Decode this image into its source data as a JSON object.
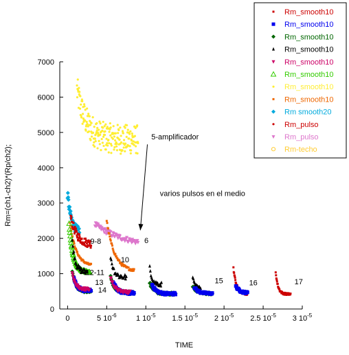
{
  "chart_data": {
    "type": "scatter",
    "xlabel": "TIME",
    "ylabel": "Rm=(ch1-ch2)*(Rp/ch2);",
    "xlim": [
      -1e-06,
      3e-05
    ],
    "ylim": [
      0,
      7000
    ],
    "x_ticks": [
      0,
      5e-06,
      1e-05,
      1.5e-05,
      2e-05,
      2.5e-05,
      3e-05
    ],
    "x_tick_labels": [
      {
        "base": "0",
        "exp": ""
      },
      {
        "base": "5 10",
        "exp": "-6"
      },
      {
        "base": "1 10",
        "exp": "-5"
      },
      {
        "base": "1.5 10",
        "exp": "-5"
      },
      {
        "base": "2 10",
        "exp": "-5"
      },
      {
        "base": "2.5 10",
        "exp": "-5"
      },
      {
        "base": "3 10",
        "exp": "-5"
      }
    ],
    "y_ticks": [
      0,
      1000,
      2000,
      3000,
      4000,
      5000,
      6000,
      7000
    ],
    "y_tick_labels": [
      "0",
      "1000",
      "2000",
      "3000",
      "4000",
      "5000",
      "6000",
      "7000"
    ],
    "legend_position": "top-right, outside plot",
    "series": [
      {
        "name": "Rm_smooth10",
        "color": "#cc0000",
        "marker": "square-small"
      },
      {
        "name": "Rm_smooth10",
        "color": "#0000ee",
        "marker": "square"
      },
      {
        "name": "Rm_smooth10",
        "color": "#006600",
        "marker": "diamond"
      },
      {
        "name": "Rm_smooth10",
        "color": "#000000",
        "marker": "triangle-up"
      },
      {
        "name": "Rm_smooth10",
        "color": "#cc0066",
        "marker": "triangle-down"
      },
      {
        "name": "Rm_smooth10",
        "color": "#33cc00",
        "marker": "triangle-open"
      },
      {
        "name": "Rm_smooth10",
        "color": "#ffee33",
        "marker": "circle-small"
      },
      {
        "name": "Rm_smooth10",
        "color": "#ee6600",
        "marker": "square-small"
      },
      {
        "name": "Rm smooth20",
        "color": "#00aadd",
        "marker": "diamond"
      },
      {
        "name": "Rm_pulso",
        "color": "#cc0000",
        "marker": "circle-small"
      },
      {
        "name": "Rm_pulso",
        "color": "#dd77cc",
        "marker": "triangle-down"
      },
      {
        "name": "Rm-techo",
        "color": "#ffcc33",
        "marker": "circle-open"
      }
    ],
    "curves": [
      {
        "series": 6,
        "x0": 1.2e-06,
        "x1": 9e-06,
        "y0": 6200,
        "y1": 4800,
        "k": 1.2e-06,
        "noise": 420,
        "n": 220
      },
      {
        "series": 10,
        "x0": 3.5e-06,
        "x1": 9e-06,
        "y0": 2400,
        "y1": 1900,
        "k": 4e-06,
        "noise": 70,
        "n": 70
      },
      {
        "series": 8,
        "x0": 0.0,
        "x1": 1.5e-06,
        "y0": 3250,
        "y1": 2200,
        "k": 5e-07,
        "noise": 120,
        "n": 40
      },
      {
        "series": 0,
        "x0": 4e-07,
        "x1": 3e-06,
        "y0": 2600,
        "y1": 1850,
        "k": 8e-07,
        "noise": 120,
        "n": 60
      },
      {
        "series": 7,
        "x0": 3e-07,
        "x1": 3e-06,
        "y0": 2450,
        "y1": 1250,
        "k": 8e-07,
        "noise": 30,
        "n": 50
      },
      {
        "series": 5,
        "x0": 2e-07,
        "x1": 2.8e-06,
        "y0": 2400,
        "y1": 1050,
        "k": 5e-07,
        "noise": 25,
        "n": 55
      },
      {
        "series": 3,
        "x0": 6e-07,
        "x1": 2.5e-06,
        "y0": 1900,
        "y1": 1050,
        "k": 4e-07,
        "noise": 80,
        "n": 30
      },
      {
        "series": 2,
        "x0": 6e-07,
        "x1": 3e-06,
        "y0": 1100,
        "y1": 500,
        "k": 4e-07,
        "noise": 40,
        "n": 45
      },
      {
        "series": 1,
        "x0": 8e-07,
        "x1": 3e-06,
        "y0": 900,
        "y1": 520,
        "k": 4e-07,
        "noise": 40,
        "n": 45
      },
      {
        "series": 4,
        "x0": 6e-07,
        "x1": 2.8e-06,
        "y0": 1000,
        "y1": 560,
        "k": 4e-07,
        "noise": 40,
        "n": 40
      },
      {
        "series": 7,
        "x0": 5e-06,
        "x1": 8.5e-06,
        "y0": 2500,
        "y1": 1100,
        "k": 1e-06,
        "noise": 40,
        "n": 55
      },
      {
        "series": 3,
        "x0": 5.5e-06,
        "x1": 7.5e-06,
        "y0": 1500,
        "y1": 900,
        "k": 4e-07,
        "noise": 80,
        "n": 25
      },
      {
        "series": 2,
        "x0": 5.5e-06,
        "x1": 8.5e-06,
        "y0": 900,
        "y1": 470,
        "k": 5e-07,
        "noise": 40,
        "n": 50
      },
      {
        "series": 1,
        "x0": 5.8e-06,
        "x1": 8.5e-06,
        "y0": 800,
        "y1": 450,
        "k": 5e-07,
        "noise": 40,
        "n": 45
      },
      {
        "series": 4,
        "x0": 5.5e-06,
        "x1": 8e-06,
        "y0": 900,
        "y1": 480,
        "k": 5e-07,
        "noise": 40,
        "n": 40
      },
      {
        "series": 3,
        "x0": 1.05e-05,
        "x1": 1.2e-05,
        "y0": 1200,
        "y1": 700,
        "k": 3e-07,
        "noise": 60,
        "n": 20
      },
      {
        "series": 2,
        "x0": 1.05e-05,
        "x1": 1.38e-05,
        "y0": 750,
        "y1": 430,
        "k": 5e-07,
        "noise": 35,
        "n": 55
      },
      {
        "series": 1,
        "x0": 1.08e-05,
        "x1": 1.38e-05,
        "y0": 700,
        "y1": 430,
        "k": 5e-07,
        "noise": 35,
        "n": 55
      },
      {
        "series": 3,
        "x0": 1.6e-05,
        "x1": 1.7e-05,
        "y0": 900,
        "y1": 600,
        "k": 3e-07,
        "noise": 40,
        "n": 14
      },
      {
        "series": 2,
        "x0": 1.6e-05,
        "x1": 1.85e-05,
        "y0": 650,
        "y1": 440,
        "k": 5e-07,
        "noise": 30,
        "n": 40
      },
      {
        "series": 1,
        "x0": 1.62e-05,
        "x1": 1.85e-05,
        "y0": 620,
        "y1": 440,
        "k": 5e-07,
        "noise": 30,
        "n": 40
      },
      {
        "series": 0,
        "x0": 2.12e-05,
        "x1": 2.3e-05,
        "y0": 1150,
        "y1": 430,
        "k": 4e-07,
        "noise": 40,
        "n": 45
      },
      {
        "series": 1,
        "x0": 2.15e-05,
        "x1": 2.3e-05,
        "y0": 650,
        "y1": 460,
        "k": 5e-07,
        "noise": 30,
        "n": 30
      },
      {
        "series": 0,
        "x0": 2.66e-05,
        "x1": 2.85e-05,
        "y0": 1050,
        "y1": 420,
        "k": 3e-07,
        "noise": 30,
        "n": 45
      }
    ],
    "annotations": [
      {
        "text": "5-amplificador",
        "x": 1.07e-05,
        "y": 4800
      },
      {
        "text": "varios pulsos en el medio",
        "x": 1.18e-05,
        "y": 3200
      },
      {
        "text": "9-8",
        "x": 2.9e-06,
        "y": 1850
      },
      {
        "text": "6",
        "x": 9.8e-06,
        "y": 1870
      },
      {
        "text": "10",
        "x": 6.8e-06,
        "y": 1320
      },
      {
        "text": "12-11",
        "x": 2.3e-06,
        "y": 960
      },
      {
        "text": "13",
        "x": 3.5e-06,
        "y": 680
      },
      {
        "text": "14",
        "x": 3.9e-06,
        "y": 470
      },
      {
        "text": "15",
        "x": 1.88e-05,
        "y": 730
      },
      {
        "text": "16",
        "x": 2.32e-05,
        "y": 670
      },
      {
        "text": "17",
        "x": 2.9e-05,
        "y": 700
      }
    ],
    "arrow": {
      "from": [
        1.02e-05,
        4660
      ],
      "to": [
        9.3e-06,
        2230
      ]
    }
  }
}
